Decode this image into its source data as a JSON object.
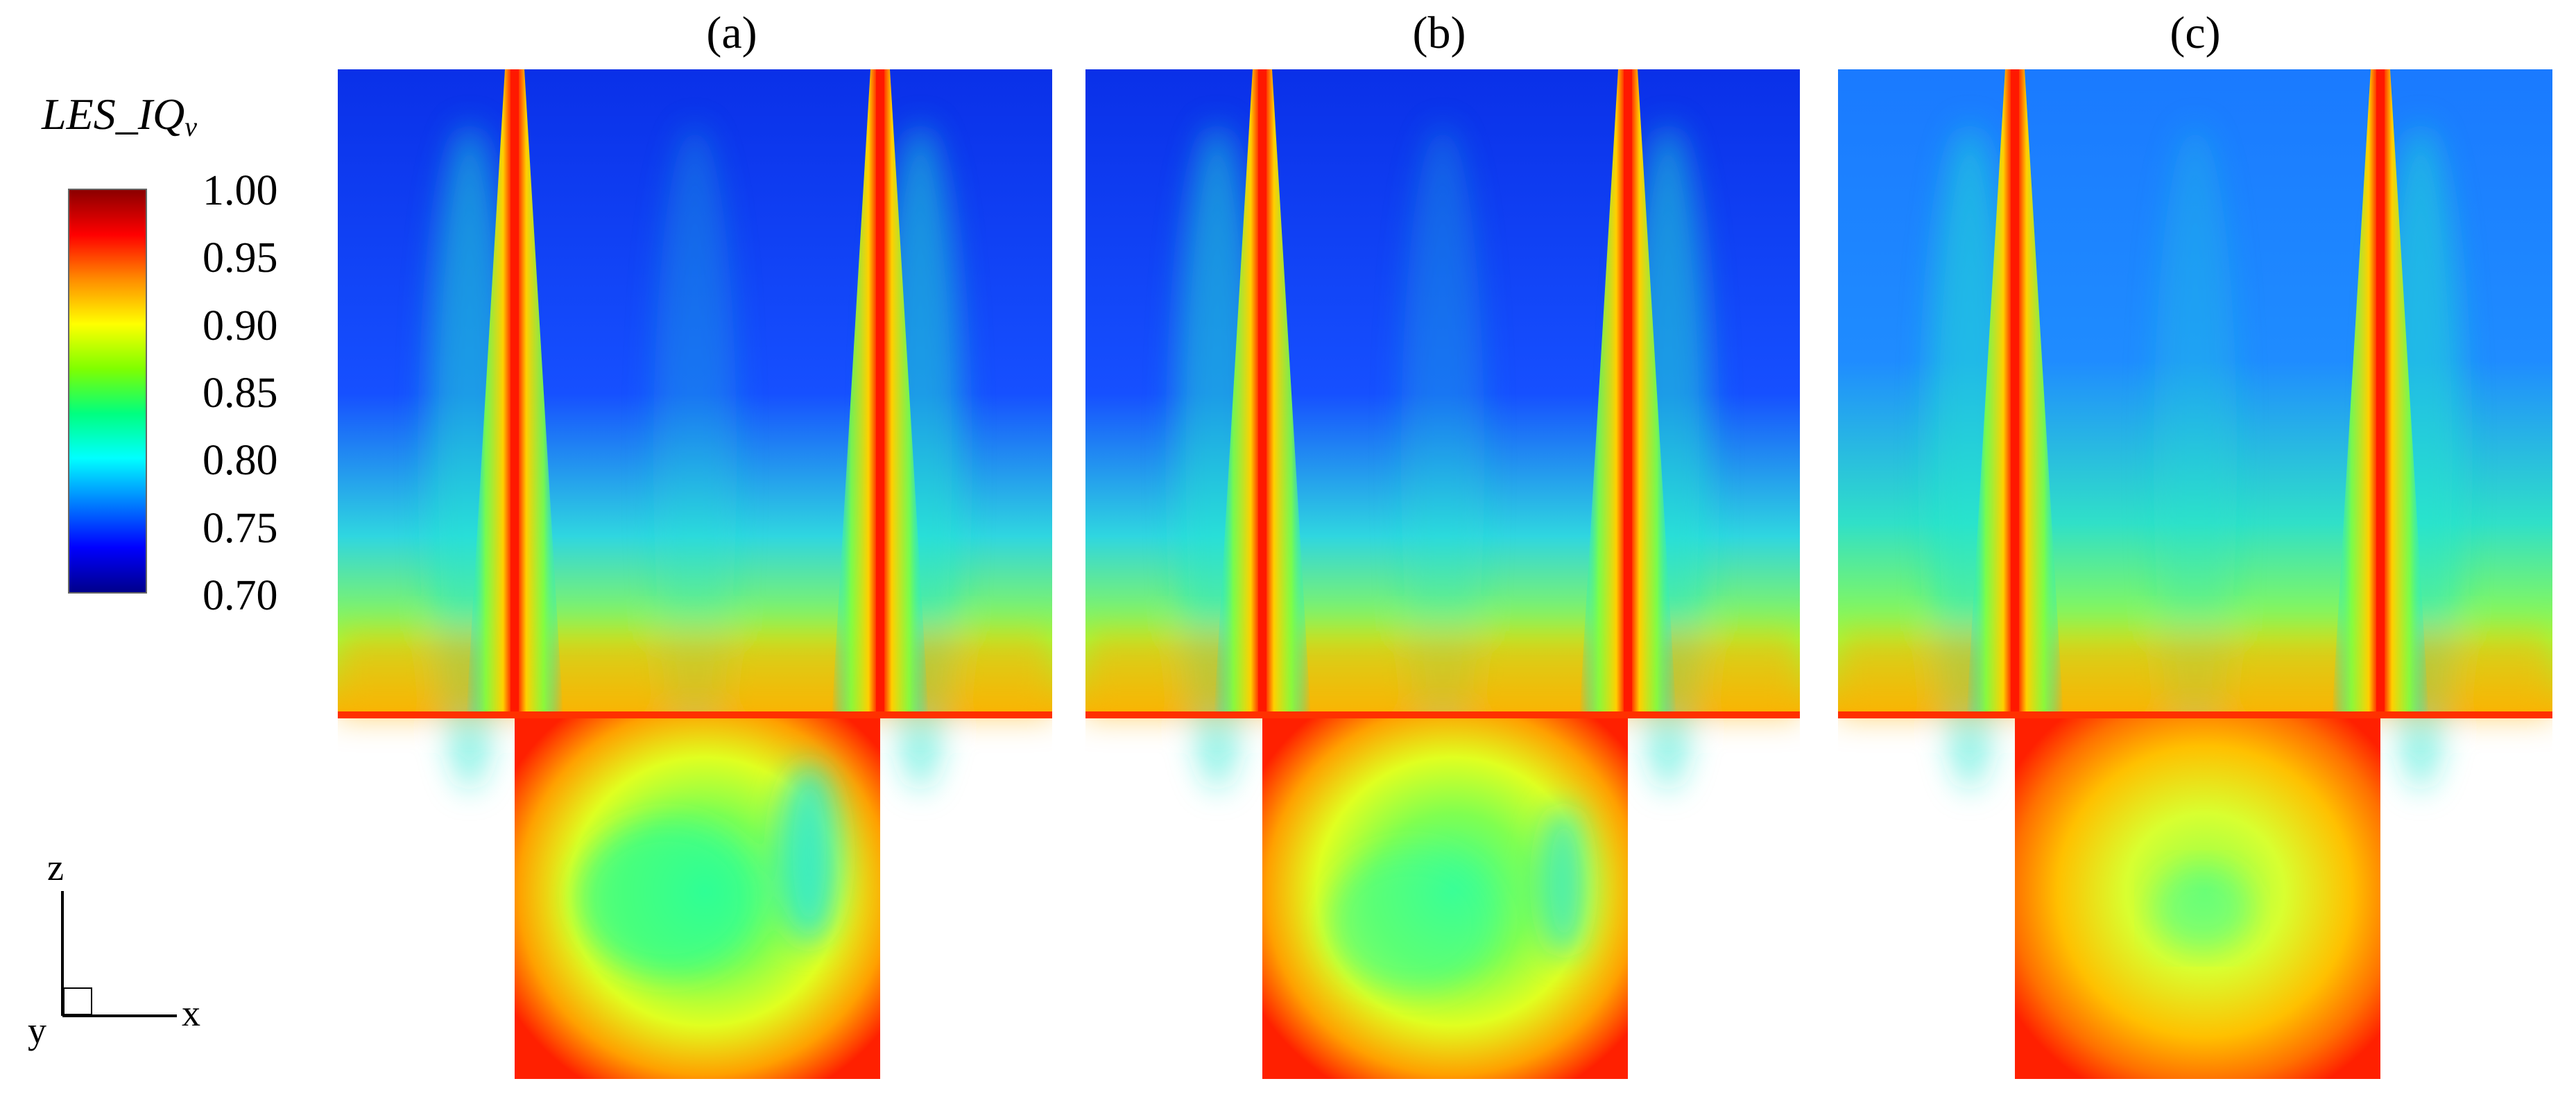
{
  "chart_data": {
    "type": "heatmap",
    "panels": [
      {
        "label": "(a)",
        "near_wall_peak": 0.95,
        "core_min": 0.72,
        "cavity_core": 0.82
      },
      {
        "label": "(b)",
        "near_wall_peak": 0.95,
        "core_min": 0.72,
        "cavity_core": 0.83
      },
      {
        "label": "(c)",
        "near_wall_peak": 0.95,
        "core_min": 0.75,
        "cavity_core": 0.85
      }
    ],
    "colorbar": {
      "title_main": "LES_IQ",
      "title_sub": "v",
      "ticks": [
        "1.00",
        "0.95",
        "0.90",
        "0.85",
        "0.80",
        "0.75",
        "0.70"
      ],
      "range": [
        0.7,
        1.0
      ],
      "colors": [
        "#8b0000",
        "#ff0000",
        "#ff8c00",
        "#ffff00",
        "#7fff00",
        "#00ff7f",
        "#00ffff",
        "#0080ff",
        "#0000ff",
        "#00008b"
      ]
    },
    "axes_labels": {
      "z": "z",
      "x": "x",
      "y": "y"
    }
  }
}
